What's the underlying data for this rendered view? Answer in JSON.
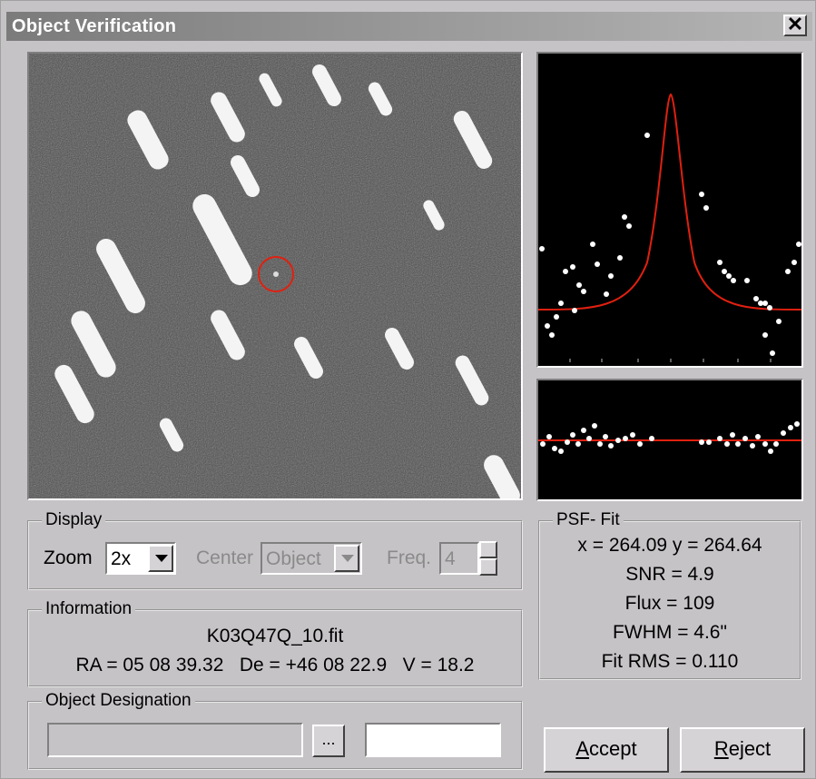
{
  "window": {
    "title": "Object Verification",
    "close_glyph": "✕"
  },
  "display": {
    "legend": "Display",
    "zoom_label": "Zoom",
    "zoom_value": "2x",
    "center_label": "Center",
    "center_value": "Object",
    "freq_label": "Freq.",
    "freq_value": "4"
  },
  "information": {
    "legend": "Information",
    "filename": "K03Q47Q_10.fit",
    "coords": "RA = 05 08 39.32   De = +46 08 22.9   V = 18.2"
  },
  "designation": {
    "legend": "Object Designation",
    "browse_label": "...",
    "name_value": "",
    "extra_value": ""
  },
  "psf": {
    "legend": "PSF- Fit",
    "xy": "x = 264.09 y = 264.64",
    "snr": "SNR = 4.9",
    "flux": "Flux = 109",
    "fwhm": "FWHM = 4.6\"",
    "fit_rms": "Fit RMS = 0.110"
  },
  "buttons": {
    "accept_hotkey": "A",
    "accept_rest": "ccept",
    "reject_hotkey": "R",
    "reject_rest": "eject"
  },
  "colors": {
    "fit_curve": "#e02010",
    "target_circle": "#e02010",
    "points": "#ffffff"
  },
  "icons": {
    "close": "close-icon",
    "dropdown": "chevron-down-icon",
    "spin_up": "spin-up-icon",
    "spin_down": "spin-down-icon"
  }
}
